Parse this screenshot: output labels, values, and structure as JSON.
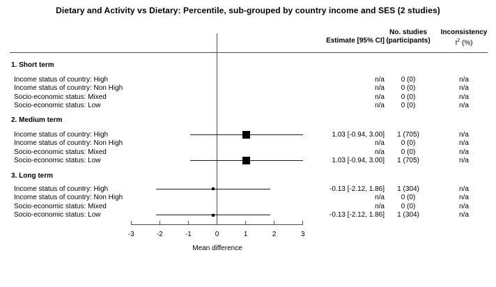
{
  "title": "Dietary and Activity vs Dietary: Percentile, sub-grouped by country income and SES (2 studies)",
  "columns": {
    "estimate": "Estimate [95% CI]",
    "studies_line1": "No. studies",
    "studies_line2": "(participants)",
    "inconsistency": "Inconsistency",
    "i2_base": "I",
    "i2_sup": "2",
    "i2_unit": " (%)"
  },
  "axis": {
    "label": "Mean difference"
  },
  "colors": {
    "background": "#ffffff",
    "text": "#000000",
    "rule": "#4d4d4d",
    "ci_line": "#1a1a1a",
    "marker": "#000000"
  },
  "chart_data": {
    "type": "scatter",
    "subtype": "forest-plot",
    "title": "Dietary and Activity vs Dietary: Percentile, sub-grouped by country income and SES (2 studies)",
    "xlabel": "Mean difference",
    "xlim": [
      -3,
      3
    ],
    "xticks": [
      -3,
      -2,
      -1,
      0,
      1,
      2,
      3
    ],
    "grid": false,
    "reference_line_x": 0,
    "column_headers": [
      "Estimate [95% CI]",
      "No. studies (participants)",
      "Inconsistency I2 (%)"
    ],
    "groups": [
      {
        "name": "1. Short term",
        "rows": [
          {
            "label": "Income status of country: High",
            "estimate_text": "n/a",
            "studies_text": "0 (0)",
            "inconsistency_text": "n/a",
            "est": null,
            "lo": null,
            "hi": null
          },
          {
            "label": "Income status of country: Non High",
            "estimate_text": "n/a",
            "studies_text": "0 (0)",
            "inconsistency_text": "n/a",
            "est": null,
            "lo": null,
            "hi": null
          },
          {
            "label": "Socio-economic status: Mixed",
            "estimate_text": "n/a",
            "studies_text": "0 (0)",
            "inconsistency_text": "n/a",
            "est": null,
            "lo": null,
            "hi": null
          },
          {
            "label": "Socio-economic status: Low",
            "estimate_text": "n/a",
            "studies_text": "0 (0)",
            "inconsistency_text": "n/a",
            "est": null,
            "lo": null,
            "hi": null
          }
        ]
      },
      {
        "name": "2. Medium term",
        "rows": [
          {
            "label": "Income status of country: High",
            "estimate_text": "1.03 [-0.94, 3.00]",
            "studies_text": "1 (705)",
            "inconsistency_text": "n/a",
            "est": 1.03,
            "lo": -0.94,
            "hi": 3.0,
            "marker_px": 11
          },
          {
            "label": "Income status of country: Non High",
            "estimate_text": "n/a",
            "studies_text": "0 (0)",
            "inconsistency_text": "n/a",
            "est": null,
            "lo": null,
            "hi": null
          },
          {
            "label": "Socio-economic status: Mixed",
            "estimate_text": "n/a",
            "studies_text": "0 (0)",
            "inconsistency_text": "n/a",
            "est": null,
            "lo": null,
            "hi": null
          },
          {
            "label": "Socio-economic status: Low",
            "estimate_text": "1.03 [-0.94, 3.00]",
            "studies_text": "1 (705)",
            "inconsistency_text": "n/a",
            "est": 1.03,
            "lo": -0.94,
            "hi": 3.0,
            "marker_px": 11
          }
        ]
      },
      {
        "name": "3. Long term",
        "rows": [
          {
            "label": "Income status of country: High",
            "estimate_text": "-0.13 [-2.12, 1.86]",
            "studies_text": "1 (304)",
            "inconsistency_text": "n/a",
            "est": -0.13,
            "lo": -2.12,
            "hi": 1.86,
            "marker_px": 4
          },
          {
            "label": "Income status of country: Non High",
            "estimate_text": "n/a",
            "studies_text": "0 (0)",
            "inconsistency_text": "n/a",
            "est": null,
            "lo": null,
            "hi": null
          },
          {
            "label": "Socio-economic status: Mixed",
            "estimate_text": "n/a",
            "studies_text": "0 (0)",
            "inconsistency_text": "n/a",
            "est": null,
            "lo": null,
            "hi": null
          },
          {
            "label": "Socio-economic status: Low",
            "estimate_text": "-0.13 [-2.12, 1.86]",
            "studies_text": "1 (304)",
            "inconsistency_text": "n/a",
            "est": -0.13,
            "lo": -2.12,
            "hi": 1.86,
            "marker_px": 4
          }
        ]
      }
    ]
  }
}
